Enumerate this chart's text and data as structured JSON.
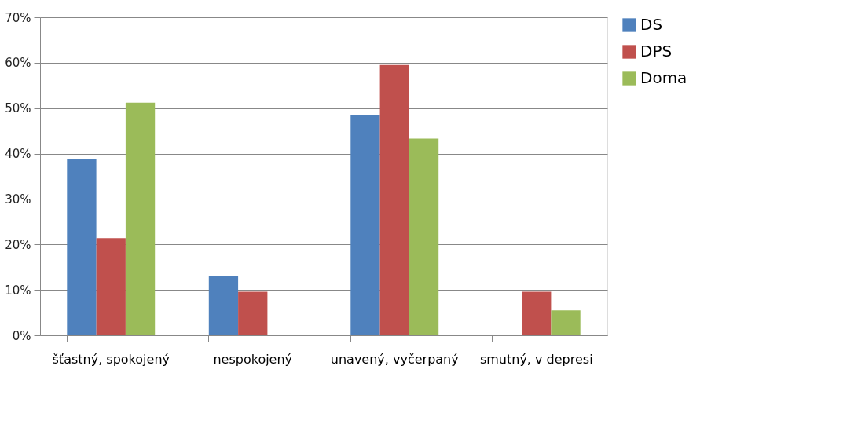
{
  "chart_data": {
    "type": "bar",
    "categories": [
      "šťastný, spokojený",
      "nespokojený",
      "unavený, vyčerpaný",
      "smutný, v depresi"
    ],
    "series": [
      {
        "name": "DS",
        "color": "#4f81bd",
        "values": [
          38.8,
          13.0,
          48.5,
          0
        ]
      },
      {
        "name": "DPS",
        "color": "#c0504d",
        "values": [
          21.4,
          9.6,
          59.5,
          9.6
        ]
      },
      {
        "name": "Doma",
        "color": "#9bbb59",
        "values": [
          51.2,
          0,
          43.3,
          5.5
        ]
      }
    ],
    "ylim": [
      0,
      70
    ],
    "yticks": [
      {
        "value": 0,
        "label": "0%"
      },
      {
        "value": 10,
        "label": "10%"
      },
      {
        "value": 20,
        "label": "20%"
      },
      {
        "value": 30,
        "label": "30%"
      },
      {
        "value": 40,
        "label": "40%"
      },
      {
        "value": 50,
        "label": "50%"
      },
      {
        "value": 60,
        "label": "60%"
      },
      {
        "value": 70,
        "label": "70%"
      }
    ],
    "grid": "y",
    "legend": "right"
  }
}
